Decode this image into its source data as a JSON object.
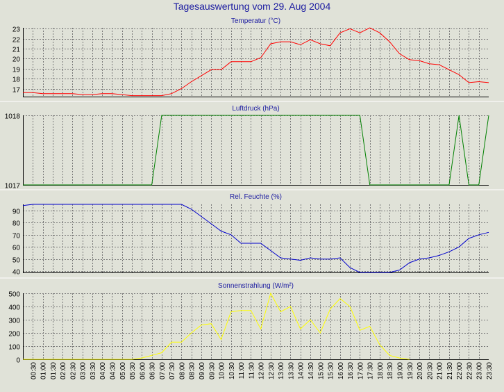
{
  "page": {
    "title": "Tagesauswertung vom 29. Aug 2004"
  },
  "colors": {
    "background": "#e0e2d8",
    "title_text": "#1a1aa0",
    "temperature": "#ff0000",
    "pressure": "#008000",
    "humidity": "#0000cc",
    "radiation": "#ffff00"
  },
  "time_labels": [
    "00:30",
    "01:00",
    "01:30",
    "02:00",
    "02:30",
    "03:00",
    "03:30",
    "04:00",
    "04:30",
    "05:00",
    "05:30",
    "06:00",
    "06:30",
    "07:00",
    "07:30",
    "08:00",
    "08:30",
    "09:00",
    "09:30",
    "10:00",
    "10:30",
    "11:00",
    "11:30",
    "12:00",
    "12:30",
    "13:00",
    "13:30",
    "14:00",
    "14:30",
    "15:00",
    "15:30",
    "16:00",
    "16:30",
    "17:00",
    "17:30",
    "18:00",
    "18:30",
    "19:00",
    "19:30",
    "20:00",
    "20:30",
    "21:00",
    "21:30",
    "22:00",
    "22:30",
    "23:00",
    "23:30"
  ],
  "chart_data": [
    {
      "type": "line",
      "title": "Temperatur (°C)",
      "ylim": [
        16.2,
        23.1
      ],
      "yticks": [
        17,
        18,
        19,
        20,
        21,
        22,
        23
      ],
      "grid": true,
      "series": [
        {
          "color": "#ff0000",
          "x": [
            0,
            0.5,
            1,
            1.5,
            2,
            2.5,
            3,
            3.5,
            4,
            4.5,
            5,
            5.5,
            6,
            6.5,
            7,
            7.5,
            8,
            8.5,
            9,
            9.5,
            10,
            10.5,
            11,
            11.5,
            12,
            12.5,
            13,
            13.5,
            14,
            14.5,
            15,
            15.5,
            16,
            16.5,
            17,
            17.5,
            18,
            18.5,
            19,
            19.5,
            20,
            20.5,
            21,
            21.5,
            22,
            22.5,
            23,
            23.5
          ],
          "y": [
            16.6,
            16.6,
            16.5,
            16.5,
            16.5,
            16.5,
            16.4,
            16.4,
            16.5,
            16.5,
            16.4,
            16.3,
            16.3,
            16.3,
            16.3,
            16.5,
            17.0,
            17.7,
            18.3,
            18.9,
            18.9,
            19.7,
            19.7,
            19.7,
            20.1,
            21.5,
            21.7,
            21.7,
            21.4,
            21.9,
            21.5,
            21.3,
            22.6,
            23.0,
            22.6,
            23.1,
            22.6,
            21.7,
            20.5,
            19.9,
            19.8,
            19.5,
            19.4,
            18.9,
            18.4,
            17.6,
            17.7,
            17.6
          ]
        }
      ]
    },
    {
      "type": "line",
      "title": "Luftdruck (hPa)",
      "ylim": [
        1017,
        1018
      ],
      "yticks": [
        1017,
        1018
      ],
      "grid": true,
      "series": [
        {
          "color": "#008000",
          "x": [
            0,
            6,
            6.5,
            7,
            7.5,
            8,
            16.5,
            17,
            17.5,
            18,
            21.5,
            22,
            22.5,
            23,
            23.5
          ],
          "y": [
            1017,
            1017,
            1017,
            1018,
            1018,
            1018,
            1018,
            1018,
            1017,
            1017,
            1017,
            1018,
            1017,
            1017,
            1018
          ]
        }
      ]
    },
    {
      "type": "line",
      "title": "Rel. Feuchte (%)",
      "ylim": [
        39,
        95
      ],
      "yticks": [
        40,
        50,
        60,
        70,
        80,
        90
      ],
      "grid": true,
      "series": [
        {
          "color": "#0000cc",
          "x": [
            0,
            0.5,
            1,
            7.5,
            8,
            8.5,
            9,
            9.5,
            10,
            10.5,
            11,
            11.5,
            12,
            12.5,
            13,
            13.5,
            14,
            14.5,
            15,
            15.5,
            16,
            16.5,
            17,
            17.5,
            18,
            18.5,
            19,
            19.5,
            20,
            20.5,
            21,
            21.5,
            22,
            22.5,
            23,
            23.5
          ],
          "y": [
            94,
            95,
            95,
            95,
            95,
            91,
            85,
            79,
            73,
            70,
            63,
            63,
            63,
            57,
            51,
            50,
            49,
            51,
            50,
            50,
            51,
            43,
            39,
            39,
            39,
            39,
            41,
            47,
            50,
            51,
            53,
            56,
            60,
            67,
            70,
            72
          ]
        }
      ]
    },
    {
      "type": "line",
      "title": "Sonnenstrahlung (W/m²)",
      "ylim": [
        0,
        500
      ],
      "yticks": [
        0,
        100,
        200,
        300,
        400,
        500
      ],
      "grid": true,
      "series": [
        {
          "color": "#ffff00",
          "x": [
            0,
            5,
            5.5,
            6,
            6.5,
            7,
            7.5,
            8,
            8.5,
            9,
            9.5,
            10,
            10.5,
            11,
            11.5,
            12,
            12.5,
            13,
            13.5,
            14,
            14.5,
            15,
            15.5,
            16,
            16.5,
            17,
            17.5,
            18,
            18.5,
            19,
            19.5
          ],
          "y": [
            0,
            0,
            0,
            10,
            30,
            50,
            130,
            130,
            200,
            260,
            270,
            150,
            360,
            370,
            370,
            230,
            500,
            360,
            400,
            230,
            300,
            200,
            380,
            460,
            400,
            220,
            250,
            110,
            30,
            10,
            0
          ]
        }
      ]
    }
  ]
}
